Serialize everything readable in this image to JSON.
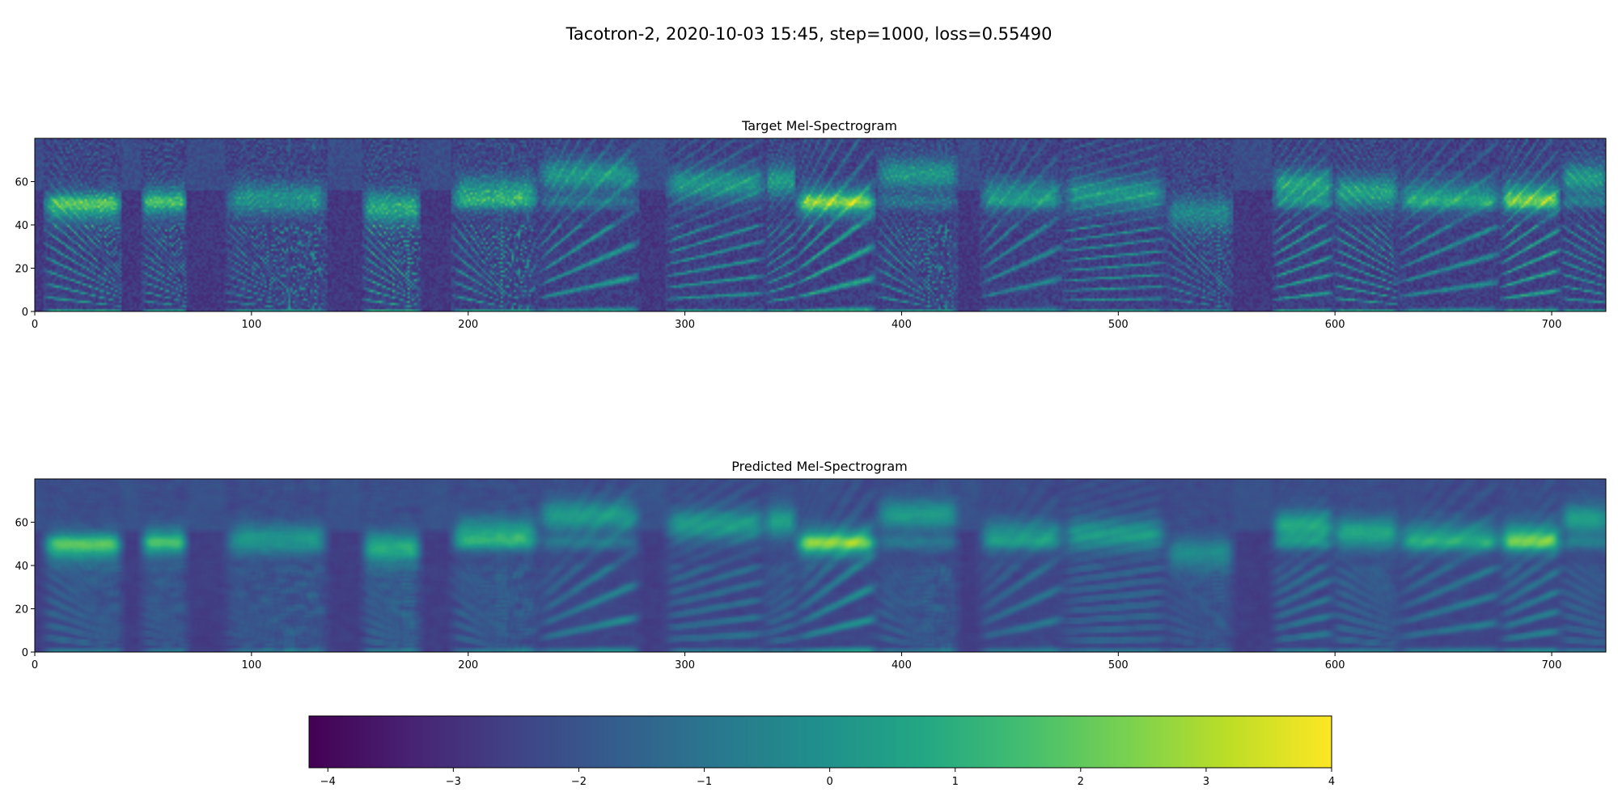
{
  "figure": {
    "suptitle": "Tacotron-2, 2020-10-03 15:45, step=1000, loss=0.55490"
  },
  "colormap": {
    "name": "viridis"
  },
  "chart_data": [
    {
      "type": "heatmap",
      "title": "Target Mel-Spectrogram",
      "xlim": [
        0,
        725
      ],
      "ylim": [
        0,
        80
      ],
      "x_ticks": [
        0,
        100,
        200,
        300,
        400,
        500,
        600,
        700
      ],
      "y_ticks": [
        0,
        20,
        40,
        60
      ],
      "frames": 725,
      "mel_channels": 80,
      "seed": 7,
      "grid": false
    },
    {
      "type": "heatmap",
      "title": "Predicted Mel-Spectrogram",
      "xlim": [
        0,
        725
      ],
      "ylim": [
        0,
        80
      ],
      "x_ticks": [
        0,
        100,
        200,
        300,
        400,
        500,
        600,
        700
      ],
      "y_ticks": [
        0,
        20,
        40,
        60
      ],
      "frames": 725,
      "mel_channels": 80,
      "seed": 7,
      "grid": false
    }
  ],
  "colorbar": {
    "range": [
      -4.15,
      4.0
    ],
    "ticks": [
      -4,
      -3,
      -2,
      -1,
      0,
      1,
      2,
      3,
      4
    ],
    "tick_labels": [
      "−4",
      "−3",
      "−2",
      "−1",
      "0",
      "1",
      "2",
      "3",
      "4"
    ]
  }
}
